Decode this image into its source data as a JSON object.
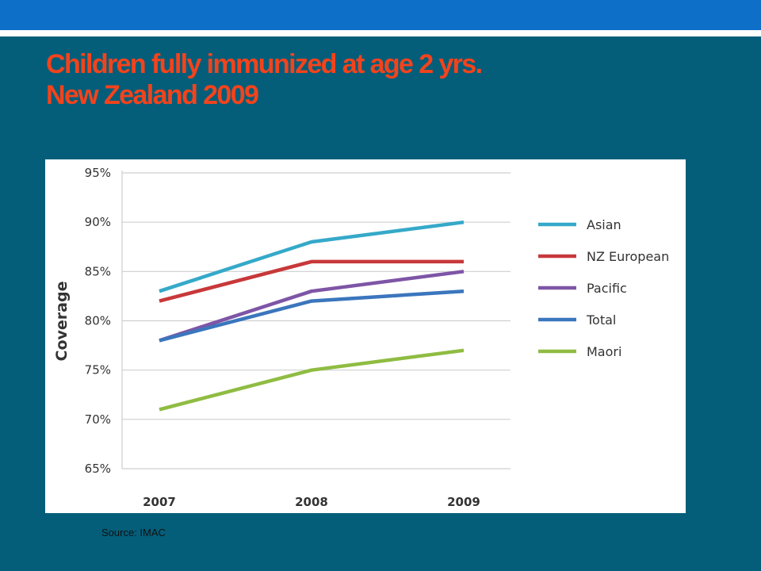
{
  "slide": {
    "title_line1": "Children fully immunized at age 2 yrs.",
    "title_line2": "New Zealand 2009",
    "source": "Source: IMAC"
  },
  "colors": {
    "background": "#045e7a",
    "top_band": "#0e6fc9",
    "title": "#f3431c"
  },
  "chart_data": {
    "type": "line",
    "title": "",
    "xlabel": "",
    "ylabel": "Coverage",
    "x": [
      "2007",
      "2008",
      "2009"
    ],
    "ylim": [
      65,
      95
    ],
    "yticks": [
      95,
      90,
      85,
      80,
      75,
      70,
      65
    ],
    "ytick_labels": [
      "95%",
      "90%",
      "85%",
      "80%",
      "75%",
      "70%",
      "65%"
    ],
    "grid": true,
    "legend_position": "right",
    "series": [
      {
        "name": "Asian",
        "values": [
          83,
          88,
          90
        ],
        "color": "#35a9c9"
      },
      {
        "name": "NZ European",
        "values": [
          82,
          86,
          86
        ],
        "color": "#c8383a"
      },
      {
        "name": "Pacific",
        "values": [
          78,
          83,
          85
        ],
        "color": "#7e55a6"
      },
      {
        "name": "Total",
        "values": [
          78,
          82,
          83
        ],
        "color": "#3b76bd"
      },
      {
        "name": "Maori",
        "values": [
          71,
          75,
          77
        ],
        "color": "#8fbc42"
      }
    ]
  }
}
